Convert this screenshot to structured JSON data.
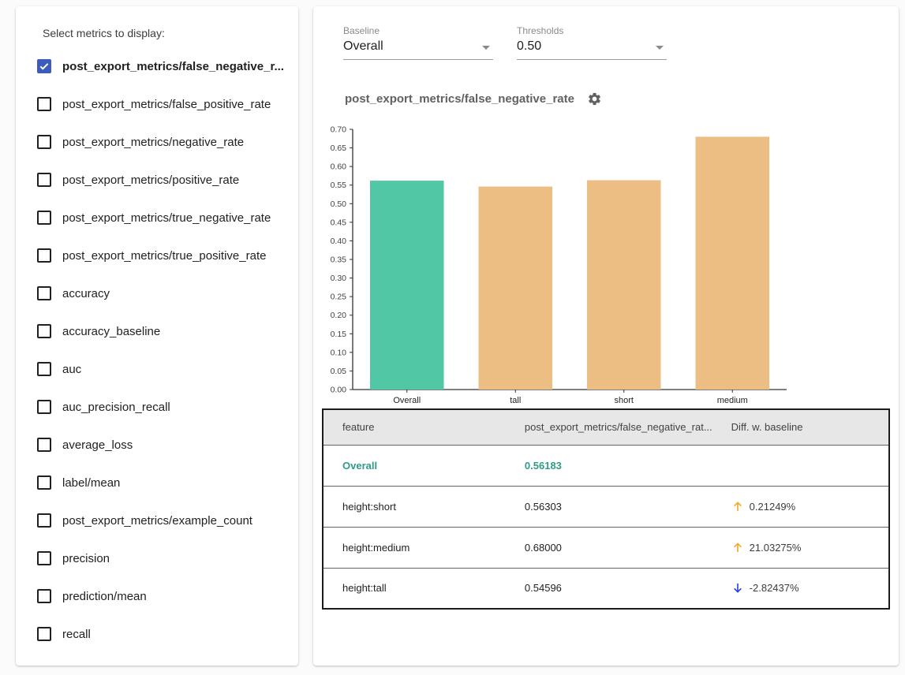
{
  "sidebar": {
    "title": "Select metrics to display:",
    "metrics": [
      {
        "label": "post_export_metrics/false_negative_r...",
        "checked": true
      },
      {
        "label": "post_export_metrics/false_positive_rate",
        "checked": false
      },
      {
        "label": "post_export_metrics/negative_rate",
        "checked": false
      },
      {
        "label": "post_export_metrics/positive_rate",
        "checked": false
      },
      {
        "label": "post_export_metrics/true_negative_rate",
        "checked": false
      },
      {
        "label": "post_export_metrics/true_positive_rate",
        "checked": false
      },
      {
        "label": "accuracy",
        "checked": false
      },
      {
        "label": "accuracy_baseline",
        "checked": false
      },
      {
        "label": "auc",
        "checked": false
      },
      {
        "label": "auc_precision_recall",
        "checked": false
      },
      {
        "label": "average_loss",
        "checked": false
      },
      {
        "label": "label/mean",
        "checked": false
      },
      {
        "label": "post_export_metrics/example_count",
        "checked": false
      },
      {
        "label": "precision",
        "checked": false
      },
      {
        "label": "prediction/mean",
        "checked": false
      },
      {
        "label": "recall",
        "checked": false
      }
    ]
  },
  "controls": {
    "baseline": {
      "label": "Baseline",
      "value": "Overall"
    },
    "thresholds": {
      "label": "Thresholds",
      "value": "0.50"
    }
  },
  "chart": {
    "title": "post_export_metrics/false_negative_rate"
  },
  "chart_data": {
    "type": "bar",
    "categories": [
      "Overall",
      "tall",
      "short",
      "medium"
    ],
    "values": [
      0.56183,
      0.54596,
      0.56303,
      0.68
    ],
    "bar_colors": [
      "#52c7a6",
      "#edbe84",
      "#edbe84",
      "#edbe84"
    ],
    "title": "post_export_metrics/false_negative_rate",
    "xlabel": "",
    "ylabel": "",
    "ylim": [
      0.0,
      0.7
    ],
    "ytick_step": 0.05,
    "grid": false,
    "legend": "none"
  },
  "table": {
    "headers": [
      "feature",
      "post_export_metrics/false_negative_rat...",
      "Diff. w. baseline"
    ],
    "rows": [
      {
        "feature": "Overall",
        "value": "0.56183",
        "diff": "",
        "direction": "none",
        "baseline": true
      },
      {
        "feature": "height:short",
        "value": "0.56303",
        "diff": "0.21249%",
        "direction": "up",
        "baseline": false
      },
      {
        "feature": "height:medium",
        "value": "0.68000",
        "diff": "21.03275%",
        "direction": "up",
        "baseline": false
      },
      {
        "feature": "height:tall",
        "value": "0.54596",
        "diff": "-2.82437%",
        "direction": "down",
        "baseline": false
      }
    ]
  },
  "colors": {
    "checkbox_checked": "#3b5bbd",
    "bar_baseline": "#52c7a6",
    "bar_slice": "#edbe84",
    "table_baseline_text": "#2f9c87",
    "arrow_up": "#f5a623",
    "arrow_down": "#2140e8",
    "axis": "#333333"
  }
}
